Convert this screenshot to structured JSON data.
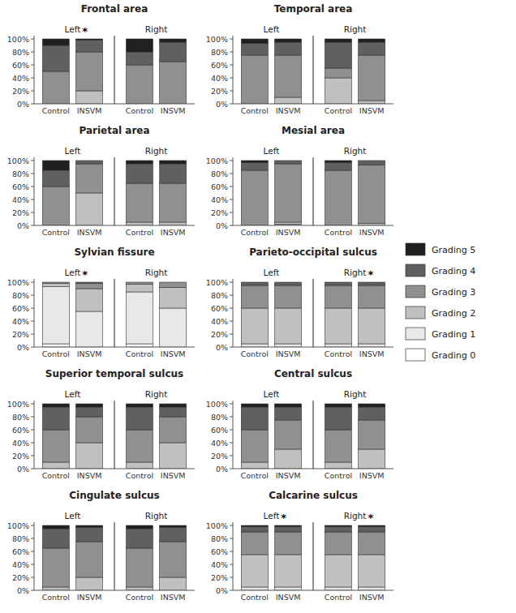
{
  "chart_data": [
    {
      "type": "bar",
      "stacked": true,
      "title": "Frontal area",
      "grid": false,
      "legend": "right",
      "categories": [
        "Control",
        "INSVM",
        "Control",
        "INSVM"
      ],
      "groups": [
        {
          "label": "Left",
          "annotation": "*"
        },
        {
          "label": "Right"
        }
      ],
      "ylim": [
        0,
        105
      ],
      "yticks": [
        {
          "value": 0,
          "label": "0%"
        },
        {
          "value": 20,
          "label": "20%"
        },
        {
          "value": 40,
          "label": "40%"
        },
        {
          "value": 60,
          "label": "60%"
        },
        {
          "value": 80,
          "label": "80%"
        },
        {
          "value": 100,
          "label": "100%"
        }
      ],
      "series": [
        {
          "name": "Grading 0",
          "color": "#ffffff",
          "values": [
            0,
            0,
            0,
            0
          ]
        },
        {
          "name": "Grading 1",
          "color": "#e8e8e8",
          "values": [
            0,
            0,
            0,
            0
          ]
        },
        {
          "name": "Grading 2",
          "color": "#c0c0c0",
          "values": [
            0,
            20,
            0,
            0
          ]
        },
        {
          "name": "Grading 3",
          "color": "#909090",
          "values": [
            50,
            60,
            60,
            65
          ]
        },
        {
          "name": "Grading 4",
          "color": "#606060",
          "values": [
            40,
            18,
            20,
            30
          ]
        },
        {
          "name": "Grading 5",
          "color": "#202020",
          "values": [
            10,
            2,
            20,
            5
          ]
        }
      ]
    },
    {
      "type": "bar",
      "stacked": true,
      "title": "Temporal area",
      "grid": false,
      "categories": [
        "Control",
        "INSVM",
        "Control",
        "INSVM"
      ],
      "groups": [
        {
          "label": "Left"
        },
        {
          "label": "Right"
        }
      ],
      "ylim": [
        0,
        105
      ],
      "yticks": [
        {
          "value": 0,
          "label": "0%"
        },
        {
          "value": 20,
          "label": "20%"
        },
        {
          "value": 40,
          "label": "40%"
        },
        {
          "value": 60,
          "label": "60%"
        },
        {
          "value": 80,
          "label": "80%"
        },
        {
          "value": 100,
          "label": "100%"
        }
      ],
      "series": [
        {
          "name": "Grading 0",
          "color": "#ffffff",
          "values": [
            0,
            0,
            0,
            0
          ]
        },
        {
          "name": "Grading 1",
          "color": "#e8e8e8",
          "values": [
            0,
            0,
            0,
            0
          ]
        },
        {
          "name": "Grading 2",
          "color": "#c0c0c0",
          "values": [
            0,
            10,
            40,
            5
          ]
        },
        {
          "name": "Grading 3",
          "color": "#909090",
          "values": [
            75,
            65,
            15,
            70
          ]
        },
        {
          "name": "Grading 4",
          "color": "#606060",
          "values": [
            18,
            20,
            40,
            20
          ]
        },
        {
          "name": "Grading 5",
          "color": "#202020",
          "values": [
            7,
            5,
            5,
            5
          ]
        }
      ]
    },
    {
      "type": "bar",
      "stacked": true,
      "title": "Parietal area",
      "grid": false,
      "categories": [
        "Control",
        "INSVM",
        "Control",
        "INSVM"
      ],
      "groups": [
        {
          "label": "Left"
        },
        {
          "label": "Right"
        }
      ],
      "ylim": [
        0,
        105
      ],
      "yticks": [
        {
          "value": 0,
          "label": "0%"
        },
        {
          "value": 20,
          "label": "20%"
        },
        {
          "value": 40,
          "label": "40%"
        },
        {
          "value": 60,
          "label": "60%"
        },
        {
          "value": 80,
          "label": "80%"
        },
        {
          "value": 100,
          "label": "100%"
        }
      ],
      "series": [
        {
          "name": "Grading 0",
          "color": "#ffffff",
          "values": [
            0,
            0,
            0,
            0
          ]
        },
        {
          "name": "Grading 1",
          "color": "#e8e8e8",
          "values": [
            0,
            0,
            0,
            0
          ]
        },
        {
          "name": "Grading 2",
          "color": "#c0c0c0",
          "values": [
            0,
            50,
            5,
            5
          ]
        },
        {
          "name": "Grading 3",
          "color": "#909090",
          "values": [
            60,
            45,
            60,
            60
          ]
        },
        {
          "name": "Grading 4",
          "color": "#606060",
          "values": [
            25,
            5,
            30,
            30
          ]
        },
        {
          "name": "Grading 5",
          "color": "#202020",
          "values": [
            15,
            0,
            5,
            5
          ]
        }
      ]
    },
    {
      "type": "bar",
      "stacked": true,
      "title": "Mesial area",
      "grid": false,
      "categories": [
        "Control",
        "INSVM",
        "Control",
        "INSVM"
      ],
      "groups": [
        {
          "label": "Left"
        },
        {
          "label": "Right"
        }
      ],
      "ylim": [
        0,
        105
      ],
      "yticks": [
        {
          "value": 0,
          "label": "0%"
        },
        {
          "value": 20,
          "label": "20%"
        },
        {
          "value": 40,
          "label": "40%"
        },
        {
          "value": 60,
          "label": "60%"
        },
        {
          "value": 80,
          "label": "80%"
        },
        {
          "value": 100,
          "label": "100%"
        }
      ],
      "series": [
        {
          "name": "Grading 0",
          "color": "#ffffff",
          "values": [
            0,
            0,
            0,
            0
          ]
        },
        {
          "name": "Grading 1",
          "color": "#e8e8e8",
          "values": [
            0,
            2,
            0,
            0
          ]
        },
        {
          "name": "Grading 2",
          "color": "#c0c0c0",
          "values": [
            0,
            3,
            0,
            3
          ]
        },
        {
          "name": "Grading 3",
          "color": "#909090",
          "values": [
            85,
            90,
            85,
            90
          ]
        },
        {
          "name": "Grading 4",
          "color": "#606060",
          "values": [
            12,
            5,
            12,
            7
          ]
        },
        {
          "name": "Grading 5",
          "color": "#202020",
          "values": [
            3,
            0,
            3,
            0
          ]
        }
      ]
    },
    {
      "type": "bar",
      "stacked": true,
      "title": "Sylvian fissure",
      "grid": false,
      "categories": [
        "Control",
        "INSVM",
        "Control",
        "INSVM"
      ],
      "groups": [
        {
          "label": "Left",
          "annotation": "*"
        },
        {
          "label": "Right"
        }
      ],
      "ylim": [
        0,
        105
      ],
      "yticks": [
        {
          "value": 0,
          "label": "0%"
        },
        {
          "value": 20,
          "label": "20%"
        },
        {
          "value": 40,
          "label": "40%"
        },
        {
          "value": 60,
          "label": "60%"
        },
        {
          "value": 80,
          "label": "80%"
        },
        {
          "value": 100,
          "label": "100%"
        }
      ],
      "series": [
        {
          "name": "Grading 0",
          "color": "#ffffff",
          "values": [
            5,
            0,
            5,
            0
          ]
        },
        {
          "name": "Grading 1",
          "color": "#e8e8e8",
          "values": [
            88,
            55,
            80,
            60
          ]
        },
        {
          "name": "Grading 2",
          "color": "#c0c0c0",
          "values": [
            5,
            35,
            12,
            32
          ]
        },
        {
          "name": "Grading 3",
          "color": "#909090",
          "values": [
            2,
            8,
            3,
            8
          ]
        },
        {
          "name": "Grading 4",
          "color": "#606060",
          "values": [
            0,
            2,
            0,
            0
          ]
        },
        {
          "name": "Grading 5",
          "color": "#202020",
          "values": [
            0,
            0,
            0,
            0
          ]
        }
      ]
    },
    {
      "type": "bar",
      "stacked": true,
      "title": "Parieto-occipital sulcus",
      "grid": false,
      "categories": [
        "Control",
        "INSVM",
        "Control",
        "INSVM"
      ],
      "groups": [
        {
          "label": "Left"
        },
        {
          "label": "Right",
          "annotation": "*"
        }
      ],
      "ylim": [
        0,
        105
      ],
      "yticks": [
        {
          "value": 0,
          "label": "0%"
        },
        {
          "value": 20,
          "label": "20%"
        },
        {
          "value": 40,
          "label": "40%"
        },
        {
          "value": 60,
          "label": "60%"
        },
        {
          "value": 80,
          "label": "80%"
        },
        {
          "value": 100,
          "label": "100%"
        }
      ],
      "series": [
        {
          "name": "Grading 0",
          "color": "#ffffff",
          "values": [
            0,
            0,
            0,
            0
          ]
        },
        {
          "name": "Grading 1",
          "color": "#e8e8e8",
          "values": [
            5,
            5,
            5,
            5
          ]
        },
        {
          "name": "Grading 2",
          "color": "#c0c0c0",
          "values": [
            55,
            55,
            55,
            55
          ]
        },
        {
          "name": "Grading 3",
          "color": "#909090",
          "values": [
            35,
            35,
            35,
            35
          ]
        },
        {
          "name": "Grading 4",
          "color": "#606060",
          "values": [
            5,
            5,
            5,
            5
          ]
        },
        {
          "name": "Grading 5",
          "color": "#202020",
          "values": [
            0,
            0,
            0,
            0
          ]
        }
      ]
    },
    {
      "type": "bar",
      "stacked": true,
      "title": "Superior temporal sulcus",
      "grid": false,
      "categories": [
        "Control",
        "INSVM",
        "Control",
        "INSVM"
      ],
      "groups": [
        {
          "label": "Left"
        },
        {
          "label": "Right"
        }
      ],
      "ylim": [
        0,
        105
      ],
      "yticks": [
        {
          "value": 0,
          "label": "0%"
        },
        {
          "value": 20,
          "label": "20%"
        },
        {
          "value": 40,
          "label": "40%"
        },
        {
          "value": 60,
          "label": "60%"
        },
        {
          "value": 80,
          "label": "80%"
        },
        {
          "value": 100,
          "label": "100%"
        }
      ],
      "series": [
        {
          "name": "Grading 0",
          "color": "#ffffff",
          "values": [
            0,
            0,
            0,
            0
          ]
        },
        {
          "name": "Grading 1",
          "color": "#e8e8e8",
          "values": [
            0,
            0,
            0,
            0
          ]
        },
        {
          "name": "Grading 2",
          "color": "#c0c0c0",
          "values": [
            10,
            40,
            10,
            40
          ]
        },
        {
          "name": "Grading 3",
          "color": "#909090",
          "values": [
            50,
            40,
            50,
            40
          ]
        },
        {
          "name": "Grading 4",
          "color": "#606060",
          "values": [
            35,
            15,
            35,
            15
          ]
        },
        {
          "name": "Grading 5",
          "color": "#202020",
          "values": [
            5,
            5,
            5,
            5
          ]
        }
      ]
    },
    {
      "type": "bar",
      "stacked": true,
      "title": "Central sulcus",
      "grid": false,
      "categories": [
        "Control",
        "INSVM",
        "Control",
        "INSVM"
      ],
      "groups": [
        {
          "label": "Left"
        },
        {
          "label": "Right"
        }
      ],
      "ylim": [
        0,
        105
      ],
      "yticks": [
        {
          "value": 0,
          "label": "0%"
        },
        {
          "value": 20,
          "label": "20%"
        },
        {
          "value": 40,
          "label": "40%"
        },
        {
          "value": 60,
          "label": "60%"
        },
        {
          "value": 80,
          "label": "80%"
        },
        {
          "value": 100,
          "label": "100%"
        }
      ],
      "series": [
        {
          "name": "Grading 0",
          "color": "#ffffff",
          "values": [
            0,
            0,
            0,
            0
          ]
        },
        {
          "name": "Grading 1",
          "color": "#e8e8e8",
          "values": [
            0,
            0,
            0,
            0
          ]
        },
        {
          "name": "Grading 2",
          "color": "#c0c0c0",
          "values": [
            10,
            30,
            10,
            30
          ]
        },
        {
          "name": "Grading 3",
          "color": "#909090",
          "values": [
            50,
            45,
            50,
            45
          ]
        },
        {
          "name": "Grading 4",
          "color": "#606060",
          "values": [
            35,
            20,
            35,
            20
          ]
        },
        {
          "name": "Grading 5",
          "color": "#202020",
          "values": [
            5,
            5,
            5,
            5
          ]
        }
      ]
    },
    {
      "type": "bar",
      "stacked": true,
      "title": "Cingulate sulcus",
      "grid": false,
      "categories": [
        "Control",
        "INSVM",
        "Control",
        "INSVM"
      ],
      "groups": [
        {
          "label": "Left"
        },
        {
          "label": "Right"
        }
      ],
      "ylim": [
        0,
        105
      ],
      "yticks": [
        {
          "value": 0,
          "label": "0%"
        },
        {
          "value": 20,
          "label": "20%"
        },
        {
          "value": 40,
          "label": "40%"
        },
        {
          "value": 60,
          "label": "60%"
        },
        {
          "value": 80,
          "label": "80%"
        },
        {
          "value": 100,
          "label": "100%"
        }
      ],
      "series": [
        {
          "name": "Grading 0",
          "color": "#ffffff",
          "values": [
            0,
            0,
            0,
            0
          ]
        },
        {
          "name": "Grading 1",
          "color": "#e8e8e8",
          "values": [
            0,
            0,
            0,
            0
          ]
        },
        {
          "name": "Grading 2",
          "color": "#c0c0c0",
          "values": [
            5,
            20,
            5,
            20
          ]
        },
        {
          "name": "Grading 3",
          "color": "#909090",
          "values": [
            60,
            55,
            60,
            55
          ]
        },
        {
          "name": "Grading 4",
          "color": "#606060",
          "values": [
            30,
            22,
            30,
            22
          ]
        },
        {
          "name": "Grading 5",
          "color": "#202020",
          "values": [
            5,
            3,
            5,
            3
          ]
        }
      ]
    },
    {
      "type": "bar",
      "stacked": true,
      "title": "Calcarine sulcus",
      "grid": false,
      "categories": [
        "Control",
        "INSVM",
        "Control",
        "INSVM"
      ],
      "groups": [
        {
          "label": "Left",
          "annotation": "*"
        },
        {
          "label": "Right",
          "annotation": "*"
        }
      ],
      "ylim": [
        0,
        105
      ],
      "yticks": [
        {
          "value": 0,
          "label": "0%"
        },
        {
          "value": 20,
          "label": "20%"
        },
        {
          "value": 40,
          "label": "40%"
        },
        {
          "value": 60,
          "label": "60%"
        },
        {
          "value": 80,
          "label": "80%"
        },
        {
          "value": 100,
          "label": "100%"
        }
      ],
      "series": [
        {
          "name": "Grading 0",
          "color": "#ffffff",
          "values": [
            0,
            0,
            0,
            0
          ]
        },
        {
          "name": "Grading 1",
          "color": "#e8e8e8",
          "values": [
            5,
            5,
            5,
            5
          ]
        },
        {
          "name": "Grading 2",
          "color": "#c0c0c0",
          "values": [
            50,
            50,
            50,
            50
          ]
        },
        {
          "name": "Grading 3",
          "color": "#909090",
          "values": [
            35,
            35,
            35,
            35
          ]
        },
        {
          "name": "Grading 4",
          "color": "#606060",
          "values": [
            8,
            8,
            8,
            8
          ]
        },
        {
          "name": "Grading 5",
          "color": "#202020",
          "values": [
            2,
            2,
            2,
            2
          ]
        }
      ]
    }
  ]
}
